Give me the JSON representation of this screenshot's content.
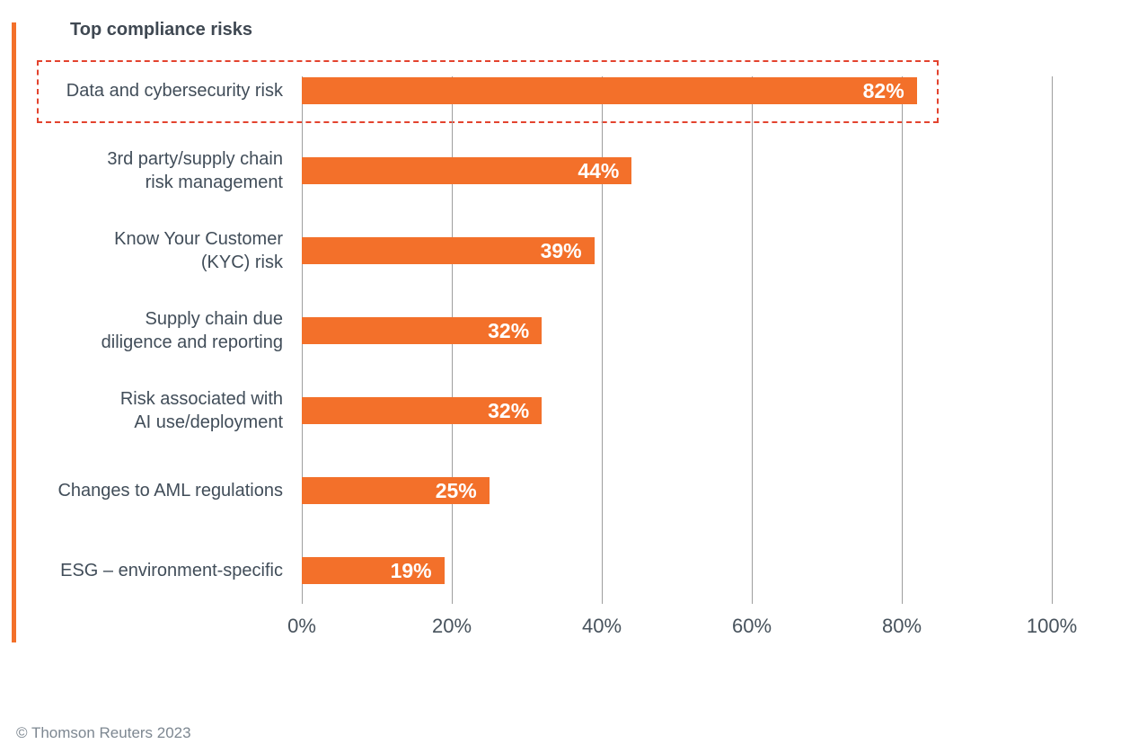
{
  "title": "Top compliance risks",
  "footer": "© Thomson Reuters 2023",
  "colors": {
    "bar": "#f3702a",
    "accent_stripe": "#f3702a",
    "highlight_border": "#e3432e",
    "gridline": "#9e9e9e",
    "label_text": "#414d59",
    "axis_text": "#47525c",
    "title_text": "#3f4852",
    "footer_text": "#7d8791",
    "bar_value_text": "#ffffff"
  },
  "chart_data": {
    "type": "bar",
    "orientation": "horizontal",
    "title": "Top compliance risks",
    "categories": [
      "Data and cybersecurity risk",
      "3rd party/supply chain risk management",
      "Know Your Customer (KYC) risk",
      "Supply chain due diligence and reporting",
      "Risk associated with AI use/deployment",
      "Changes to AML regulations",
      "ESG – environment-specific"
    ],
    "category_lines": [
      {
        "lines": [
          "Data and cybersecurity risk"
        ]
      },
      {
        "lines": [
          "3rd party/supply chain",
          "risk management"
        ]
      },
      {
        "lines": [
          "Know Your Customer",
          "(KYC) risk"
        ]
      },
      {
        "lines": [
          "Supply chain due",
          "diligence and reporting"
        ]
      },
      {
        "lines": [
          "Risk associated with",
          "AI use/deployment"
        ]
      },
      {
        "lines": [
          "Changes to AML regulations"
        ]
      },
      {
        "lines": [
          "ESG – environment-specific"
        ]
      }
    ],
    "values": [
      82,
      44,
      39,
      32,
      32,
      25,
      19
    ],
    "value_labels": [
      "82%",
      "44%",
      "39%",
      "32%",
      "32%",
      "25%",
      "19%"
    ],
    "x_tick_labels": [
      "0%",
      "20%",
      "40%",
      "60%",
      "80%",
      "100%"
    ],
    "xlim": [
      0,
      100
    ],
    "grid": true,
    "legend": "none",
    "highlighted_category": "Data and cybersecurity risk",
    "annotation": "Dashed box highlighting the top compliance risk"
  }
}
